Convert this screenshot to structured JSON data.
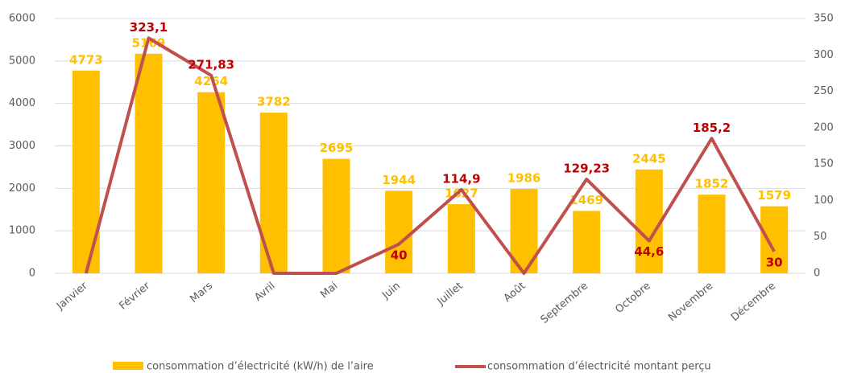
{
  "chart_data": {
    "type": "bar-line",
    "categories": [
      "Janvier",
      "Février",
      "Mars",
      "Avril",
      "Mai",
      "Juin",
      "Juillet",
      "Août",
      "Septembre",
      "Octobre",
      "Novembre",
      "Décembre"
    ],
    "series": [
      {
        "name": "consommation d’électricité (kW/h) de l’aire",
        "type": "bar",
        "color": "#ffc000",
        "values": [
          4773,
          5169,
          4264,
          3782,
          2695,
          1944,
          1627,
          1986,
          1469,
          2445,
          1852,
          1579
        ]
      },
      {
        "name": "consommation d’électricité montant perçu",
        "type": "line",
        "color": "#c0504d",
        "axis": "y2",
        "values": [
          0,
          323.1,
          271.83,
          0,
          0,
          40,
          114.9,
          0,
          129.23,
          44.6,
          185.2,
          30
        ],
        "value_labels": [
          null,
          "323,1",
          "271,83",
          null,
          null,
          "40",
          "114,9",
          null,
          "129,23",
          "44,6",
          "185,2",
          "30"
        ]
      }
    ],
    "ylim": [
      0,
      6000
    ],
    "yticks": [
      0,
      1000,
      2000,
      3000,
      4000,
      5000,
      6000
    ],
    "y2lim": [
      0,
      350
    ],
    "y2ticks": [
      0,
      50,
      100,
      150,
      200,
      250,
      300,
      350
    ],
    "grid": true
  }
}
